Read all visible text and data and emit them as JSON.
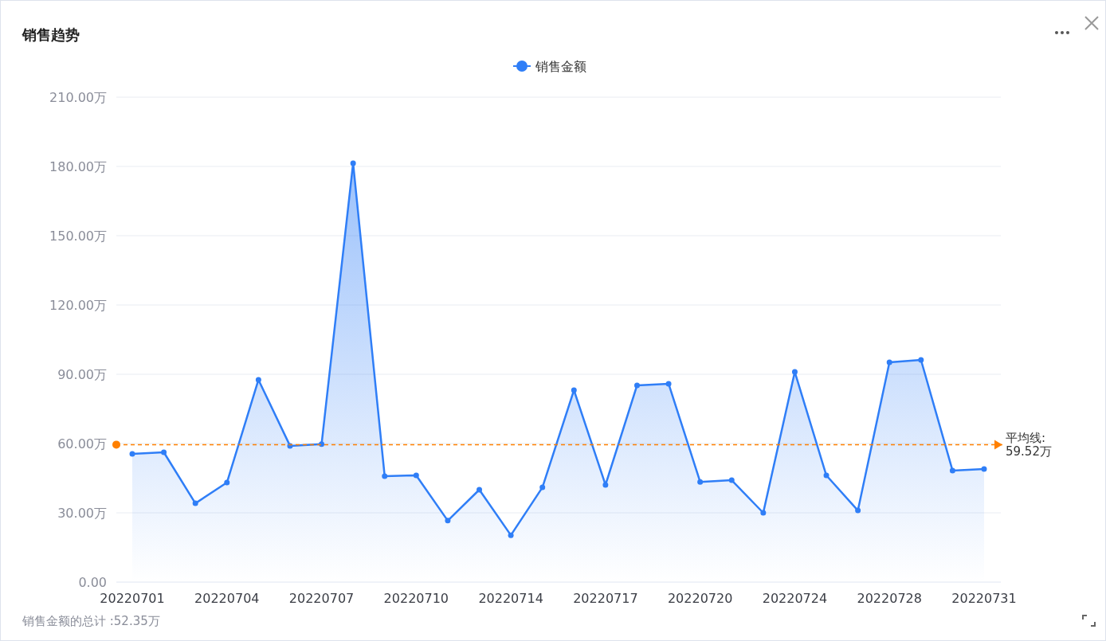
{
  "chart_data": {
    "type": "area",
    "title": "销售趋势",
    "legend": "top",
    "marker": "circle",
    "grid": "y",
    "categories": [
      "20220701",
      null,
      null,
      "20220704",
      null,
      null,
      "20220707",
      null,
      null,
      "20220710",
      null,
      null,
      "20220714",
      null,
      null,
      "20220717",
      null,
      null,
      "20220720",
      null,
      null,
      "20220724",
      null,
      null,
      "20220728",
      null,
      null,
      "20220731"
    ],
    "series": [
      {
        "name": "销售金额",
        "color": "#2f7ef7",
        "values": [
          55.5,
          56.2,
          34.1,
          43.1,
          87.6,
          59.0,
          59.7,
          181.4,
          45.9,
          46.2,
          26.6,
          40.0,
          20.3,
          41.0,
          83.1,
          42.1,
          85.2,
          85.9,
          43.4,
          44.1,
          30.0,
          91.0,
          46.2,
          31.0,
          95.2,
          96.2,
          48.3,
          49.0
        ]
      }
    ],
    "ylim": [
      0,
      210
    ],
    "yticks": [
      {
        "value": 0,
        "label": "0.00"
      },
      {
        "value": 30,
        "label": "30.00万"
      },
      {
        "value": 60,
        "label": "60.00万"
      },
      {
        "value": 90,
        "label": "90.00万"
      },
      {
        "value": 120,
        "label": "120.00万"
      },
      {
        "value": 150,
        "label": "150.00万"
      },
      {
        "value": 180,
        "label": "180.00万"
      },
      {
        "value": 210,
        "label": "210.00万"
      }
    ],
    "ref_lines": [
      {
        "axis": "y",
        "value": 59.52,
        "label": "平均线: 59.52万",
        "color": "#ff8000",
        "line_style": "dashed"
      }
    ],
    "annotations": [
      "销售金额的总计 :52.35万"
    ]
  }
}
